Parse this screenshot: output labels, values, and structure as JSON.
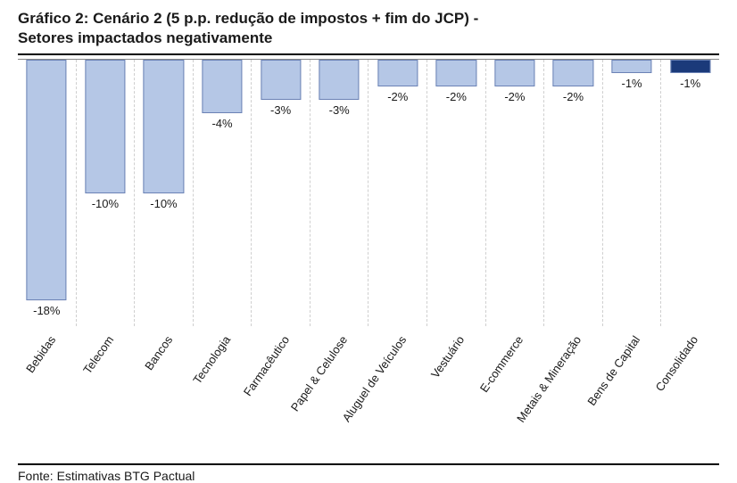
{
  "chart": {
    "type": "bar",
    "title_line1": "Gráfico 2: Cenário 2 (5 p.p. redução de impostos + fim do JCP) -",
    "title_line2": "Setores impactados negativamente",
    "title_fontsize": 17,
    "source": "Fonte: Estimativas BTG Pactual",
    "background_color": "#ffffff",
    "axis_color": "#888888",
    "gridline_color": "#cfcfcf",
    "gridline_dash": "4,4",
    "label_font_size": 13,
    "label_rotation_deg": -55,
    "value_label_font_size": 13,
    "bar_width_pct": 70,
    "bar_border_color": "#6b82b5",
    "yrange_min": -20,
    "yrange_max": 0,
    "series": [
      {
        "category": "Bebidas",
        "value": -18,
        "label": "-18%",
        "color": "#b5c7e6"
      },
      {
        "category": "Telecom",
        "value": -10,
        "label": "-10%",
        "color": "#b5c7e6"
      },
      {
        "category": "Bancos",
        "value": -10,
        "label": "-10%",
        "color": "#b5c7e6"
      },
      {
        "category": "Tecnologia",
        "value": -4,
        "label": "-4%",
        "color": "#b5c7e6"
      },
      {
        "category": "Farmacêutico",
        "value": -3,
        "label": "-3%",
        "color": "#b5c7e6"
      },
      {
        "category": "Papel & Celulose",
        "value": -3,
        "label": "-3%",
        "color": "#b5c7e6"
      },
      {
        "category": "Aluguel de Veículos",
        "value": -2,
        "label": "-2%",
        "color": "#b5c7e6"
      },
      {
        "category": "Vestuário",
        "value": -2,
        "label": "-2%",
        "color": "#b5c7e6"
      },
      {
        "category": "E-commerce",
        "value": -2,
        "label": "-2%",
        "color": "#b5c7e6"
      },
      {
        "category": "Metais & Mineração",
        "value": -2,
        "label": "-2%",
        "color": "#b5c7e6"
      },
      {
        "category": "Bens de Capital",
        "value": -1,
        "label": "-1%",
        "color": "#b5c7e6"
      },
      {
        "category": "Consolidado",
        "value": -1,
        "label": "-1%",
        "color": "#1b3a7a"
      }
    ]
  }
}
